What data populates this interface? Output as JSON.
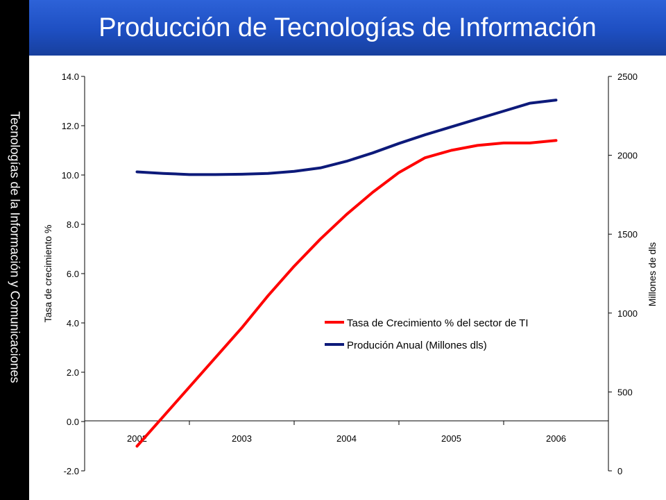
{
  "header": {
    "title": "Producción de Tecnologías de Información"
  },
  "sidebar": {
    "text": "Tecnologías de la Información y Comunicaciones"
  },
  "colors": {
    "title_bar": "#1e4fc2",
    "sidebar": "#000000",
    "series_red": "#ff0000",
    "series_navy": "#0d1a7a"
  },
  "chart_data": {
    "type": "line",
    "x": [
      2002,
      2003,
      2004,
      2005,
      2006
    ],
    "x_tick_labels": [
      "2002",
      "2003",
      "2004",
      "2005",
      "2006"
    ],
    "ylabel_left": "Tasa de crecimiento %",
    "ylabel_right": "Millones de dls",
    "ylim_left": [
      -2.0,
      14.0
    ],
    "ylim_right": [
      0,
      2500
    ],
    "yticks_left": [
      "14.0",
      "12.0",
      "10.0",
      "8.0",
      "6.0",
      "4.0",
      "2.0",
      "0.0",
      "-2.0"
    ],
    "yticks_right": [
      "2500",
      "2000",
      "1500",
      "1000",
      "500",
      "0"
    ],
    "grid": false,
    "legend_position": "center-right",
    "series": [
      {
        "name": "Tasa de Crecimiento % del sector de TI",
        "axis": "left",
        "color": "#ff0000",
        "x": [
          2002,
          2002.25,
          2002.5,
          2002.75,
          2003,
          2003.25,
          2003.5,
          2003.75,
          2004,
          2004.25,
          2004.5,
          2004.75,
          2005,
          2005.25,
          2005.5,
          2005.75,
          2006
        ],
        "values": [
          -1.0,
          0.2,
          1.4,
          2.6,
          3.8,
          5.1,
          6.3,
          7.4,
          8.4,
          9.3,
          10.1,
          10.7,
          11.0,
          11.2,
          11.3,
          11.3,
          11.4
        ]
      },
      {
        "name": "Produción Anual (Millones dls)",
        "axis": "right",
        "color": "#0d1a7a",
        "x": [
          2002,
          2002.25,
          2002.5,
          2002.75,
          2003,
          2003.25,
          2003.5,
          2003.75,
          2004,
          2004.25,
          2004.5,
          2004.75,
          2005,
          2005.25,
          2005.5,
          2005.75,
          2006
        ],
        "values": [
          1895,
          1885,
          1878,
          1878,
          1880,
          1885,
          1898,
          1920,
          1962,
          2015,
          2075,
          2130,
          2180,
          2230,
          2280,
          2330,
          2350
        ]
      }
    ]
  }
}
